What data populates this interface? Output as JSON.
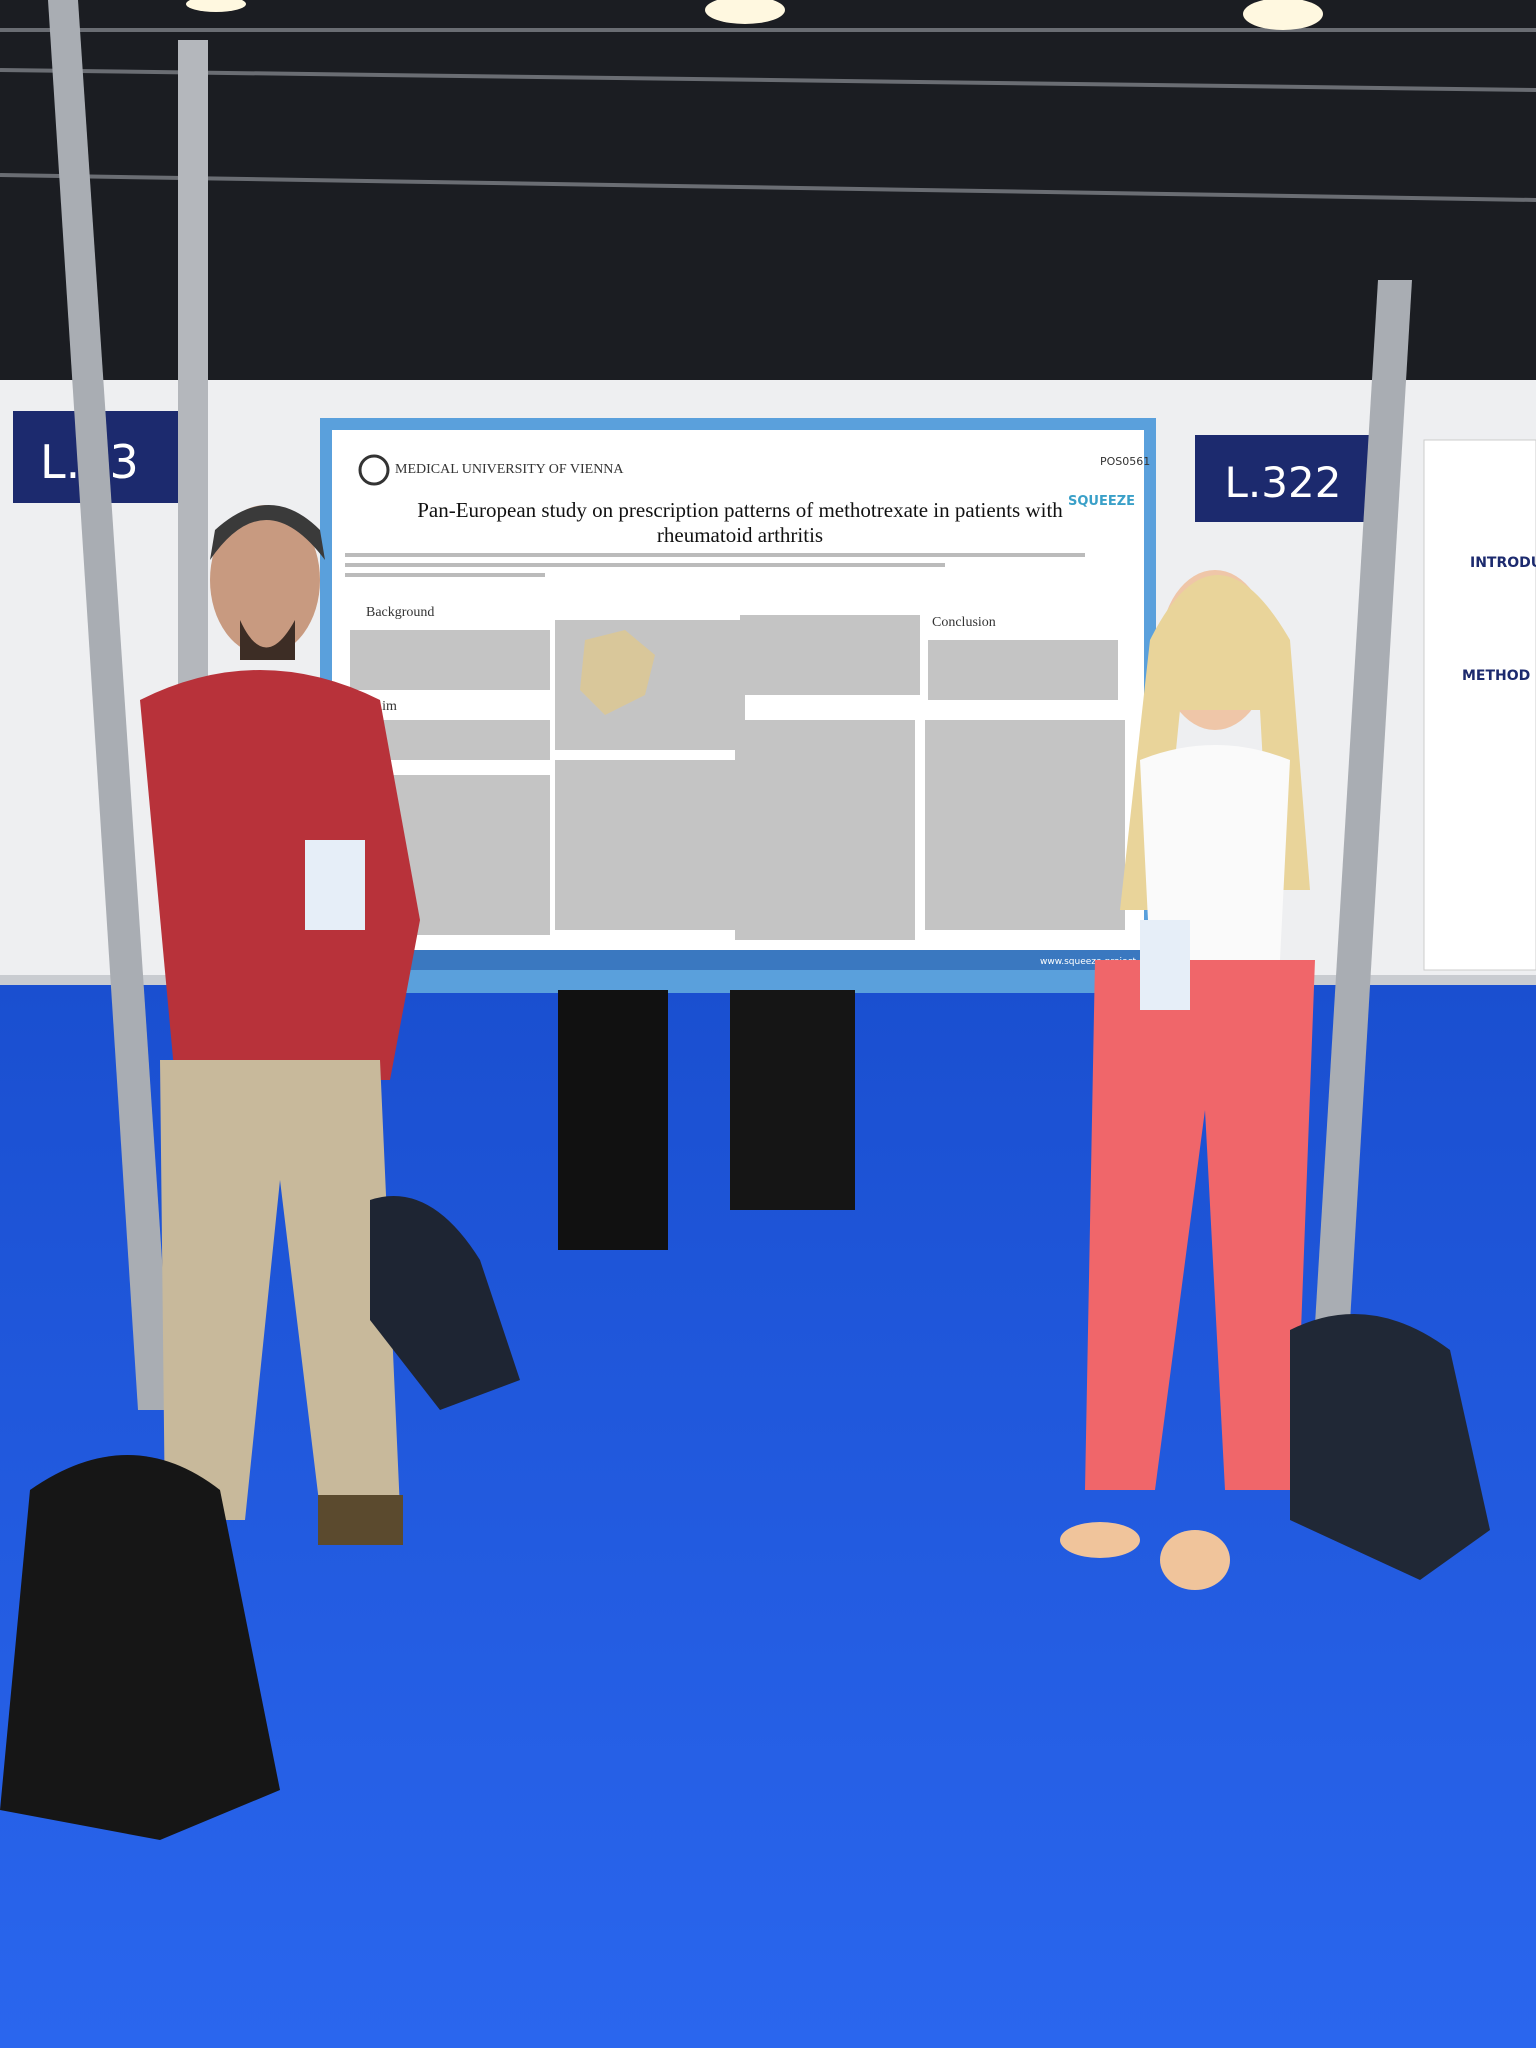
{
  "poster": {
    "institution": "MEDICAL UNIVERSITY OF VIENNA",
    "code": "POS0561",
    "logo": "SQUEEZE",
    "title": "Pan-European study on prescription patterns of methotrexate in patients with rheumatoid arthritis",
    "sections": [
      "Background",
      "Aim",
      "Conclusion"
    ],
    "footer": "www.squeeze-project.eu"
  },
  "booth_signs": [
    "L.322",
    "L.23"
  ],
  "neighbor_poster": {
    "sections": [
      "INTRODUC",
      "METHOD"
    ]
  }
}
